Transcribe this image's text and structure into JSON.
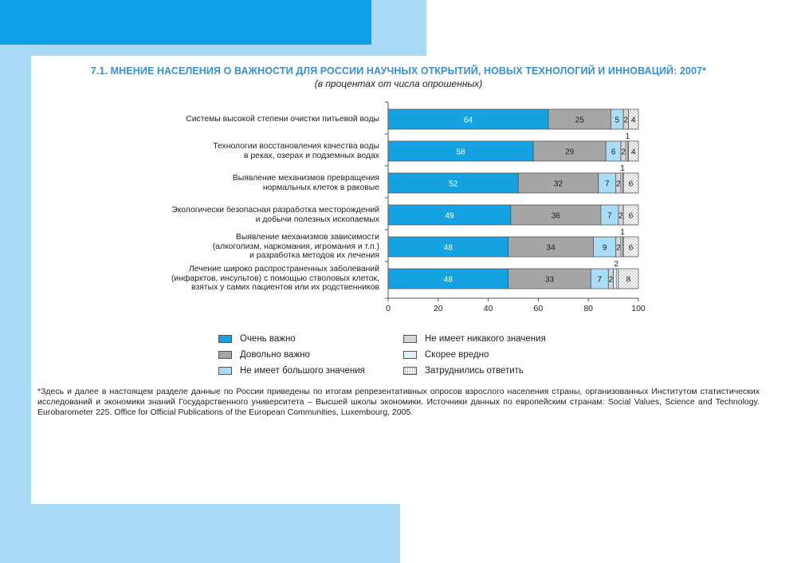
{
  "title": "7.1. МНЕНИЕ НАСЕЛЕНИЯ О ВАЖНОСТИ ДЛЯ РОССИИ НАУЧНЫХ ОТКРЫТИЙ, НОВЫХ ТЕХНОЛОГИЙ И ИННОВАЦИЙ: 2007*",
  "subtitle": "(в процентах от числа опрошенных)",
  "colors": {
    "accent": "#3a8fd0",
    "deco_blue": "#0fa1e6",
    "deco_light": "#a8daf5"
  },
  "chart_data": {
    "type": "bar",
    "orientation": "horizontal",
    "stacked": true,
    "xlim": [
      0,
      100
    ],
    "x_ticks": [
      "0",
      "20",
      "40",
      "60",
      "80",
      "100"
    ],
    "categories": [
      [
        "Системы высокой степени очистки питьевой воды"
      ],
      [
        "Технологии восстановления качества воды",
        "в реках, озерах и подземных водах"
      ],
      [
        "Выявление механизмов превращения",
        "нормальных клеток в раковые"
      ],
      [
        "Экологически безопасная разработка месторождений",
        "и добычи полезных ископаемых"
      ],
      [
        "Выявление механизмов зависимости",
        "(алкоголизм, наркомания, игромания и т.п.)",
        "и разработка методов их лечения"
      ],
      [
        "Лечение широко распространенных заболеваний",
        "(инфарктов, инсультов) с помощью стволовых клеток,",
        "взятых у самих пациентов или их родственников"
      ]
    ],
    "series": [
      {
        "name": "Очень важно",
        "color": "#14a2e0",
        "values": [
          64,
          58,
          52,
          49,
          48,
          48
        ]
      },
      {
        "name": "Довольно важно",
        "color": "#a6a6a6",
        "values": [
          25,
          29,
          32,
          36,
          34,
          33
        ]
      },
      {
        "name": "Не имеет большого значения",
        "color": "#a9dcf6",
        "values": [
          5,
          6,
          7,
          7,
          9,
          7
        ]
      },
      {
        "name": "Не имеет никакого значения",
        "color": "#d6d6d6",
        "values": [
          2,
          2,
          2,
          2,
          2,
          2
        ]
      },
      {
        "name": "Скорее вредно",
        "color": "#dff2fc",
        "values": [
          0,
          1,
          1,
          0,
          1,
          2
        ]
      },
      {
        "name": "Затруднились ответить",
        "color": "#ffffff",
        "pattern": "dots",
        "values": [
          4,
          4,
          6,
          6,
          6,
          8
        ]
      }
    ],
    "value_labels": [
      [
        "64",
        "25",
        "5",
        "2",
        "",
        "4"
      ],
      [
        "58",
        "29",
        "6",
        "2",
        "1",
        "4"
      ],
      [
        "52",
        "32",
        "7",
        "2",
        "1",
        "6"
      ],
      [
        "49",
        "36",
        "7",
        "2",
        "",
        "6"
      ],
      [
        "48",
        "34",
        "9",
        "2",
        "1",
        "6"
      ],
      [
        "48",
        "33",
        "7",
        "2",
        "2",
        "8"
      ]
    ],
    "grid": false,
    "legend_position": "bottom"
  },
  "legend": [
    "Очень важно",
    "Довольно важно",
    "Не имеет большого значения",
    "Не имеет никакого значения",
    "Скорее вредно",
    "Затруднились ответить"
  ],
  "footnote": "*Здесь и далее в настоящем разделе данные по России приведены по итогам репрезентативных опросов взрослого населения страны, организованных Институтом статистических исследований и экономики знаний Государственного университета – Высшей школы экономики. Источники данных по европейским странам: Social Values, Science and Technology. Eurobarometer 225. Office for Official Publications of the European Communities, Luxembourg, 2005."
}
